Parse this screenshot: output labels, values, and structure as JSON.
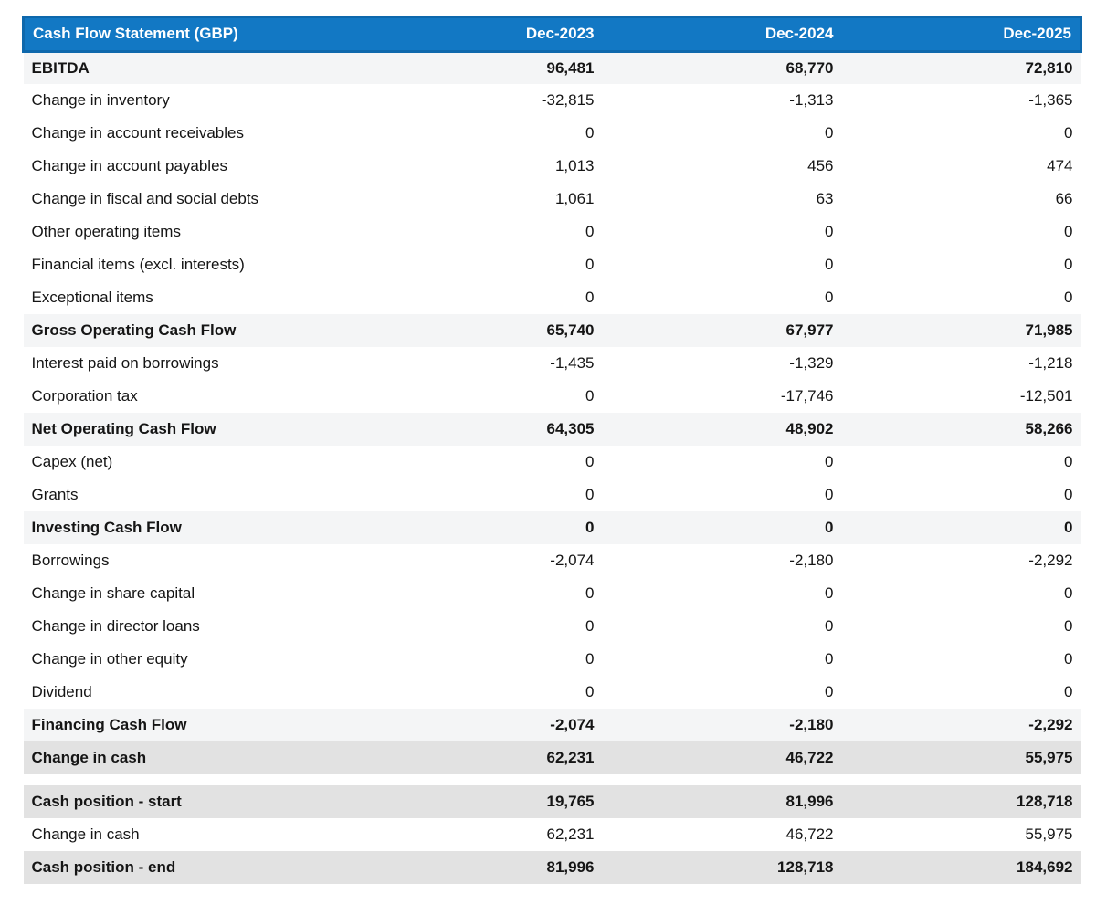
{
  "colors": {
    "header_bg": "#1278c4",
    "header_border": "#0e68ac",
    "header_text": "#ffffff",
    "subtotal_bg": "#f4f5f6",
    "highlight_bg": "#e2e2e2",
    "text": "#151515"
  },
  "table": {
    "title": "Cash Flow Statement (GBP)",
    "columns": [
      "Dec-2023",
      "Dec-2024",
      "Dec-2025"
    ],
    "rows": [
      {
        "label": "EBITDA",
        "values": [
          "96,481",
          "68,770",
          "72,810"
        ],
        "style": "subtotal"
      },
      {
        "label": "Change in inventory",
        "values": [
          "-32,815",
          "-1,313",
          "-1,365"
        ],
        "style": "normal"
      },
      {
        "label": "Change in account receivables",
        "values": [
          "0",
          "0",
          "0"
        ],
        "style": "normal"
      },
      {
        "label": "Change in account payables",
        "values": [
          "1,013",
          "456",
          "474"
        ],
        "style": "normal"
      },
      {
        "label": "Change in fiscal and social debts",
        "values": [
          "1,061",
          "63",
          "66"
        ],
        "style": "normal"
      },
      {
        "label": "Other operating items",
        "values": [
          "0",
          "0",
          "0"
        ],
        "style": "normal"
      },
      {
        "label": "Financial items (excl. interests)",
        "values": [
          "0",
          "0",
          "0"
        ],
        "style": "normal"
      },
      {
        "label": "Exceptional items",
        "values": [
          "0",
          "0",
          "0"
        ],
        "style": "normal"
      },
      {
        "label": "Gross Operating Cash Flow",
        "values": [
          "65,740",
          "67,977",
          "71,985"
        ],
        "style": "subtotal"
      },
      {
        "label": "Interest paid on borrowings",
        "values": [
          "-1,435",
          "-1,329",
          "-1,218"
        ],
        "style": "normal"
      },
      {
        "label": "Corporation tax",
        "values": [
          "0",
          "-17,746",
          "-12,501"
        ],
        "style": "normal"
      },
      {
        "label": "Net Operating Cash Flow",
        "values": [
          "64,305",
          "48,902",
          "58,266"
        ],
        "style": "subtotal"
      },
      {
        "label": "Capex (net)",
        "values": [
          "0",
          "0",
          "0"
        ],
        "style": "normal"
      },
      {
        "label": "Grants",
        "values": [
          "0",
          "0",
          "0"
        ],
        "style": "normal"
      },
      {
        "label": "Investing Cash Flow",
        "values": [
          "0",
          "0",
          "0"
        ],
        "style": "subtotal"
      },
      {
        "label": "Borrowings",
        "values": [
          "-2,074",
          "-2,180",
          "-2,292"
        ],
        "style": "normal"
      },
      {
        "label": "Change in share capital",
        "values": [
          "0",
          "0",
          "0"
        ],
        "style": "normal"
      },
      {
        "label": "Change in director loans",
        "values": [
          "0",
          "0",
          "0"
        ],
        "style": "normal"
      },
      {
        "label": "Change in other equity",
        "values": [
          "0",
          "0",
          "0"
        ],
        "style": "normal"
      },
      {
        "label": "Dividend",
        "values": [
          "0",
          "0",
          "0"
        ],
        "style": "normal"
      },
      {
        "label": "Financing Cash Flow",
        "values": [
          "-2,074",
          "-2,180",
          "-2,292"
        ],
        "style": "subtotal"
      },
      {
        "label": "Change in cash",
        "values": [
          "62,231",
          "46,722",
          "55,975"
        ],
        "style": "highlight"
      },
      {
        "style": "spacer"
      },
      {
        "label": "Cash position - start",
        "values": [
          "19,765",
          "81,996",
          "128,718"
        ],
        "style": "highlight"
      },
      {
        "label": "Change in cash",
        "values": [
          "62,231",
          "46,722",
          "55,975"
        ],
        "style": "normal"
      },
      {
        "label": "Cash position - end",
        "values": [
          "81,996",
          "128,718",
          "184,692"
        ],
        "style": "highlight"
      }
    ]
  }
}
